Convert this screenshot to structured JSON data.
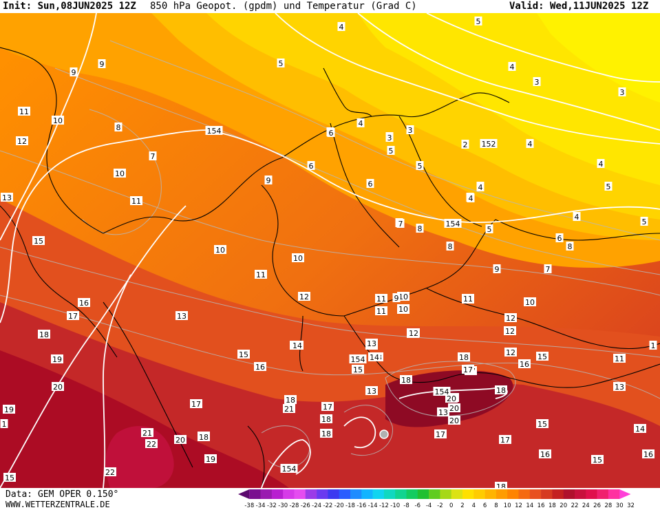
{
  "header": {
    "init": "Init: Sun,08JUN2025 12Z",
    "title": "850 hPa Geopot. (gpdm) und Temperatur (Grad C)",
    "valid": "Valid: Wed,11JUN2025 12Z"
  },
  "footer": {
    "data_source": "Data: GEM OPER 0.150°",
    "website": "WWW.WETTERZENTRALE.DE"
  },
  "legend": {
    "ticks": [
      "-38",
      "-34",
      "-32",
      "-30",
      "-28",
      "-26",
      "-24",
      "-22",
      "-20",
      "-18",
      "-16",
      "-14",
      "-12",
      "-10",
      "-8",
      "-6",
      "-4",
      "-2",
      "0",
      "2",
      "4",
      "6",
      "8",
      "10",
      "12",
      "14",
      "16",
      "18",
      "20",
      "22",
      "24",
      "26",
      "28",
      "30",
      "32"
    ],
    "colors": [
      "#5c0a6e",
      "#7a0f8f",
      "#9a1bb0",
      "#b81fd0",
      "#d63ae8",
      "#e54cf0",
      "#9b3be8",
      "#6a3af0",
      "#3c3af0",
      "#2a5cff",
      "#1e8cff",
      "#12b4ff",
      "#10d4f0",
      "#0fd8c0",
      "#10d490",
      "#12cc60",
      "#20c030",
      "#60cc20",
      "#a6d818",
      "#dce214",
      "#ffe000",
      "#ffcc00",
      "#ffb400",
      "#ff9c00",
      "#ff8400",
      "#f56a10",
      "#e85020",
      "#d63a20",
      "#c42020",
      "#b0102c",
      "#c8103c",
      "#e0104c",
      "#f0206e",
      "#ff30a0",
      "#ff40d8"
    ]
  },
  "geopotential_labels": [
    "154",
    "154",
    "152",
    "154",
    "154",
    "154"
  ],
  "temperature_labels": [
    {
      "v": "4"
    },
    {
      "v": "5"
    },
    {
      "v": "5"
    },
    {
      "v": "4"
    },
    {
      "v": "3"
    },
    {
      "v": "3"
    },
    {
      "v": "3"
    },
    {
      "v": "3"
    },
    {
      "v": "4"
    },
    {
      "v": "5"
    },
    {
      "v": "5"
    },
    {
      "v": "4"
    },
    {
      "v": "9"
    },
    {
      "v": "9"
    },
    {
      "v": "11"
    },
    {
      "v": "10"
    },
    {
      "v": "12"
    },
    {
      "v": "10"
    },
    {
      "v": "11"
    },
    {
      "v": "13"
    },
    {
      "v": "8"
    },
    {
      "v": "7"
    },
    {
      "v": "6"
    },
    {
      "v": "6"
    },
    {
      "v": "4"
    },
    {
      "v": "5"
    },
    {
      "v": "3"
    },
    {
      "v": "5"
    },
    {
      "v": "6"
    },
    {
      "v": "9"
    },
    {
      "v": "10"
    },
    {
      "v": "11"
    },
    {
      "v": "15"
    },
    {
      "v": "10"
    },
    {
      "v": "7"
    },
    {
      "v": "6"
    },
    {
      "v": "4"
    },
    {
      "v": "4"
    },
    {
      "v": "4"
    },
    {
      "v": "5"
    },
    {
      "v": "6"
    },
    {
      "v": "8"
    },
    {
      "v": "8"
    },
    {
      "v": "9"
    },
    {
      "v": "7"
    },
    {
      "v": "10"
    },
    {
      "v": "11"
    },
    {
      "v": "10"
    },
    {
      "v": "12"
    },
    {
      "v": "16"
    },
    {
      "v": "17"
    },
    {
      "v": "13"
    },
    {
      "v": "18"
    },
    {
      "v": "19"
    },
    {
      "v": "20"
    },
    {
      "v": "11"
    },
    {
      "v": "12"
    },
    {
      "v": "13"
    },
    {
      "v": "14"
    },
    {
      "v": "15"
    },
    {
      "v": "16"
    },
    {
      "v": "17"
    },
    {
      "v": "18"
    },
    {
      "v": "19"
    },
    {
      "v": "20"
    },
    {
      "v": "21"
    },
    {
      "v": "22"
    },
    {
      "v": "22"
    },
    {
      "v": "19"
    },
    {
      "v": "15"
    },
    {
      "v": "16"
    },
    {
      "v": "18"
    },
    {
      "v": "17"
    },
    {
      "v": "20"
    },
    {
      "v": "13"
    },
    {
      "v": "17"
    },
    {
      "v": "20"
    },
    {
      "v": "15"
    },
    {
      "v": "14"
    },
    {
      "v": "12"
    },
    {
      "v": "11"
    },
    {
      "v": "13"
    },
    {
      "v": "15"
    },
    {
      "v": "16"
    },
    {
      "v": "13"
    },
    {
      "v": "11"
    },
    {
      "v": "13"
    },
    {
      "v": "14"
    },
    {
      "v": "15"
    },
    {
      "v": "15"
    },
    {
      "v": "16"
    },
    {
      "v": "17"
    },
    {
      "v": "18"
    },
    {
      "v": "20"
    },
    {
      "v": "17"
    },
    {
      "v": "18"
    },
    {
      "v": "13"
    },
    {
      "v": "17"
    },
    {
      "v": "18"
    },
    {
      "v": "21"
    },
    {
      "v": "18"
    },
    {
      "v": "18"
    },
    {
      "v": "14"
    },
    {
      "v": "15"
    },
    {
      "v": "10"
    },
    {
      "v": "11"
    },
    {
      "v": "12"
    },
    {
      "v": "10"
    },
    {
      "v": "13"
    },
    {
      "v": "11"
    },
    {
      "v": "7"
    },
    {
      "v": "8"
    },
    {
      "v": "9"
    },
    {
      "v": "6"
    },
    {
      "v": "4"
    },
    {
      "v": "4"
    },
    {
      "v": "3"
    },
    {
      "v": "2"
    },
    {
      "v": "4"
    },
    {
      "v": "3"
    },
    {
      "v": "12"
    },
    {
      "v": "12"
    },
    {
      "v": "1"
    },
    {
      "v": "1"
    },
    {
      "v": "18"
    },
    {
      "v": "20"
    },
    {
      "v": "17"
    },
    {
      "v": "18"
    },
    {
      "v": "18"
    }
  ]
}
